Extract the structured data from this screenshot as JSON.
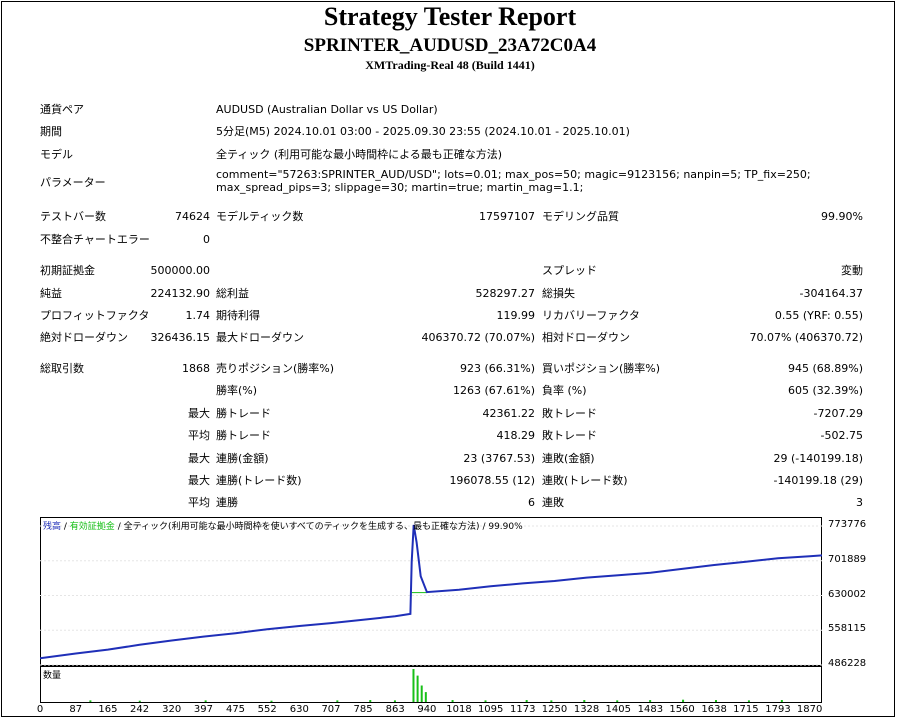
{
  "header": {
    "title": "Strategy Tester Report",
    "expert": "SPRINTER_AUDUSD_23A72C0A4",
    "server": "XMTrading-Real 48 (Build 1441)"
  },
  "info": {
    "symbol_label": "通貨ペア",
    "symbol_value": "AUDUSD (Australian Dollar vs US Dollar)",
    "period_label": "期間",
    "period_value": "5分足(M5) 2024.10.01 03:00 - 2025.09.30 23:55 (2024.10.01 - 2025.10.01)",
    "model_label": "モデル",
    "model_value": "全ティック (利用可能な最小時間枠による最も正確な方法)",
    "params_label": "パラメーター",
    "params_value": "comment=\"57263:SPRINTER_AUD/USD\"; lots=0.01; max_pos=50; magic=9123156; nanpin=5; TP_fix=250; max_spread_pips=3; slippage=30; martin=true; martin_mag=1.1;"
  },
  "stats": {
    "bars_label": "テストバー数",
    "bars_value": "74624",
    "ticks_label": "モデルティック数",
    "ticks_value": "17597107",
    "quality_label": "モデリング品質",
    "quality_value": "99.90%",
    "mismatch_label": "不整合チャートエラー",
    "mismatch_value": "0",
    "deposit_label": "初期証拠金",
    "deposit_value": "500000.00",
    "spread_label": "スプレッド",
    "spread_value": "変動",
    "netprofit_label": "純益",
    "netprofit_value": "224132.90",
    "grossprofit_label": "総利益",
    "grossprofit_value": "528297.27",
    "grossloss_label": "総損失",
    "grossloss_value": "-304164.37",
    "pf_label": "プロフィットファクタ",
    "pf_value": "1.74",
    "expected_label": "期待利得",
    "expected_value": "119.99",
    "recovery_label": "リカバリーファクタ",
    "recovery_value": "0.55 (YRF: 0.55)",
    "absdd_label": "絶対ドローダウン",
    "absdd_value": "326436.15",
    "maxdd_label": "最大ドローダウン",
    "maxdd_value": "406370.72 (70.07%)",
    "reldd_label": "相対ドローダウン",
    "reldd_value": "70.07% (406370.72)",
    "trades_label": "総取引数",
    "trades_value": "1868",
    "short_label": "売りポジション(勝率%)",
    "short_value": "923 (66.31%)",
    "long_label": "買いポジション(勝率%)",
    "long_value": "945 (68.89%)",
    "winrate_label": "勝率(%)",
    "winrate_value": "1263 (67.61%)",
    "lossrate_label": "負率 (%)",
    "lossrate_value": "605 (32.39%)",
    "max_label": "最大",
    "avg_label": "平均",
    "win_trade_label": "勝トレード",
    "loss_trade_label": "敗トレード",
    "max_win_value": "42361.22",
    "max_loss_value": "-7207.29",
    "avg_win_value": "418.29",
    "avg_loss_value": "-502.75",
    "cons_win_amt_label": "連勝(金額)",
    "cons_win_amt_value": "23 (3767.53)",
    "cons_loss_amt_label": "連敗(金額)",
    "cons_loss_amt_value": "29 (-140199.18)",
    "cons_win_tr_label": "連勝(トレード数)",
    "cons_win_tr_value": "196078.55 (12)",
    "cons_loss_tr_label": "連敗(トレード数)",
    "cons_loss_tr_value": "-140199.18 (29)",
    "avg_cons_win_label": "連勝",
    "avg_cons_win_value": "6",
    "avg_cons_loss_label": "連敗",
    "avg_cons_loss_value": "3"
  },
  "chart_legend": {
    "balance": "残高",
    "equity": "有効証拠金",
    "model": "全ティック(利用可能な最小時間枠を使いすべてのティックを生成する、最も正確な方法)",
    "quality": "99.90%",
    "volume": "数量"
  },
  "colors": {
    "balance": "#1f2fb8",
    "equity": "#18c018",
    "volume": "#18c018"
  },
  "chart_data": {
    "type": "line",
    "y_ticks": [
      "773776",
      "701889",
      "630002",
      "558115",
      "486228"
    ],
    "x_ticks": [
      "0",
      "87",
      "165",
      "242",
      "320",
      "397",
      "475",
      "552",
      "630",
      "707",
      "785",
      "863",
      "940",
      "1018",
      "1095",
      "1173",
      "1250",
      "1328",
      "1405",
      "1483",
      "1560",
      "1638",
      "1715",
      "1793",
      "1870"
    ],
    "ylim": [
      486228,
      773776
    ],
    "xlim": [
      0,
      1900
    ],
    "series": [
      {
        "name": "残高",
        "points": [
          [
            0,
            500000
          ],
          [
            87,
            510000
          ],
          [
            165,
            518000
          ],
          [
            242,
            528000
          ],
          [
            320,
            537000
          ],
          [
            397,
            545000
          ],
          [
            475,
            552000
          ],
          [
            552,
            560000
          ],
          [
            630,
            567000
          ],
          [
            707,
            573000
          ],
          [
            785,
            580000
          ],
          [
            863,
            587000
          ],
          [
            900,
            592000
          ],
          [
            903,
            700000
          ],
          [
            908,
            776000
          ],
          [
            915,
            740000
          ],
          [
            925,
            670000
          ],
          [
            940,
            637000
          ],
          [
            1018,
            642000
          ],
          [
            1095,
            649000
          ],
          [
            1173,
            655000
          ],
          [
            1250,
            660000
          ],
          [
            1328,
            667000
          ],
          [
            1405,
            672000
          ],
          [
            1483,
            677000
          ],
          [
            1560,
            685000
          ],
          [
            1638,
            693000
          ],
          [
            1715,
            700000
          ],
          [
            1793,
            707000
          ],
          [
            1870,
            711000
          ],
          [
            1900,
            713000
          ]
        ]
      },
      {
        "name": "有効証拠金",
        "points": [
          [
            903,
            636000
          ],
          [
            940,
            636000
          ]
        ]
      }
    ],
    "volume": [
      [
        120,
        0.05
      ],
      [
        240,
        0.04
      ],
      [
        400,
        0.05
      ],
      [
        560,
        0.04
      ],
      [
        720,
        0.05
      ],
      [
        800,
        0.06
      ],
      [
        860,
        0.05
      ],
      [
        905,
        1
      ],
      [
        915,
        0.8
      ],
      [
        925,
        0.5
      ],
      [
        935,
        0.3
      ],
      [
        1000,
        0.06
      ],
      [
        1080,
        0.05
      ],
      [
        1180,
        0.06
      ],
      [
        1240,
        0.05
      ],
      [
        1320,
        0.06
      ],
      [
        1400,
        0.05
      ],
      [
        1480,
        0.06
      ],
      [
        1560,
        0.07
      ],
      [
        1640,
        0.06
      ],
      [
        1720,
        0.05
      ],
      [
        1800,
        0.06
      ]
    ]
  }
}
